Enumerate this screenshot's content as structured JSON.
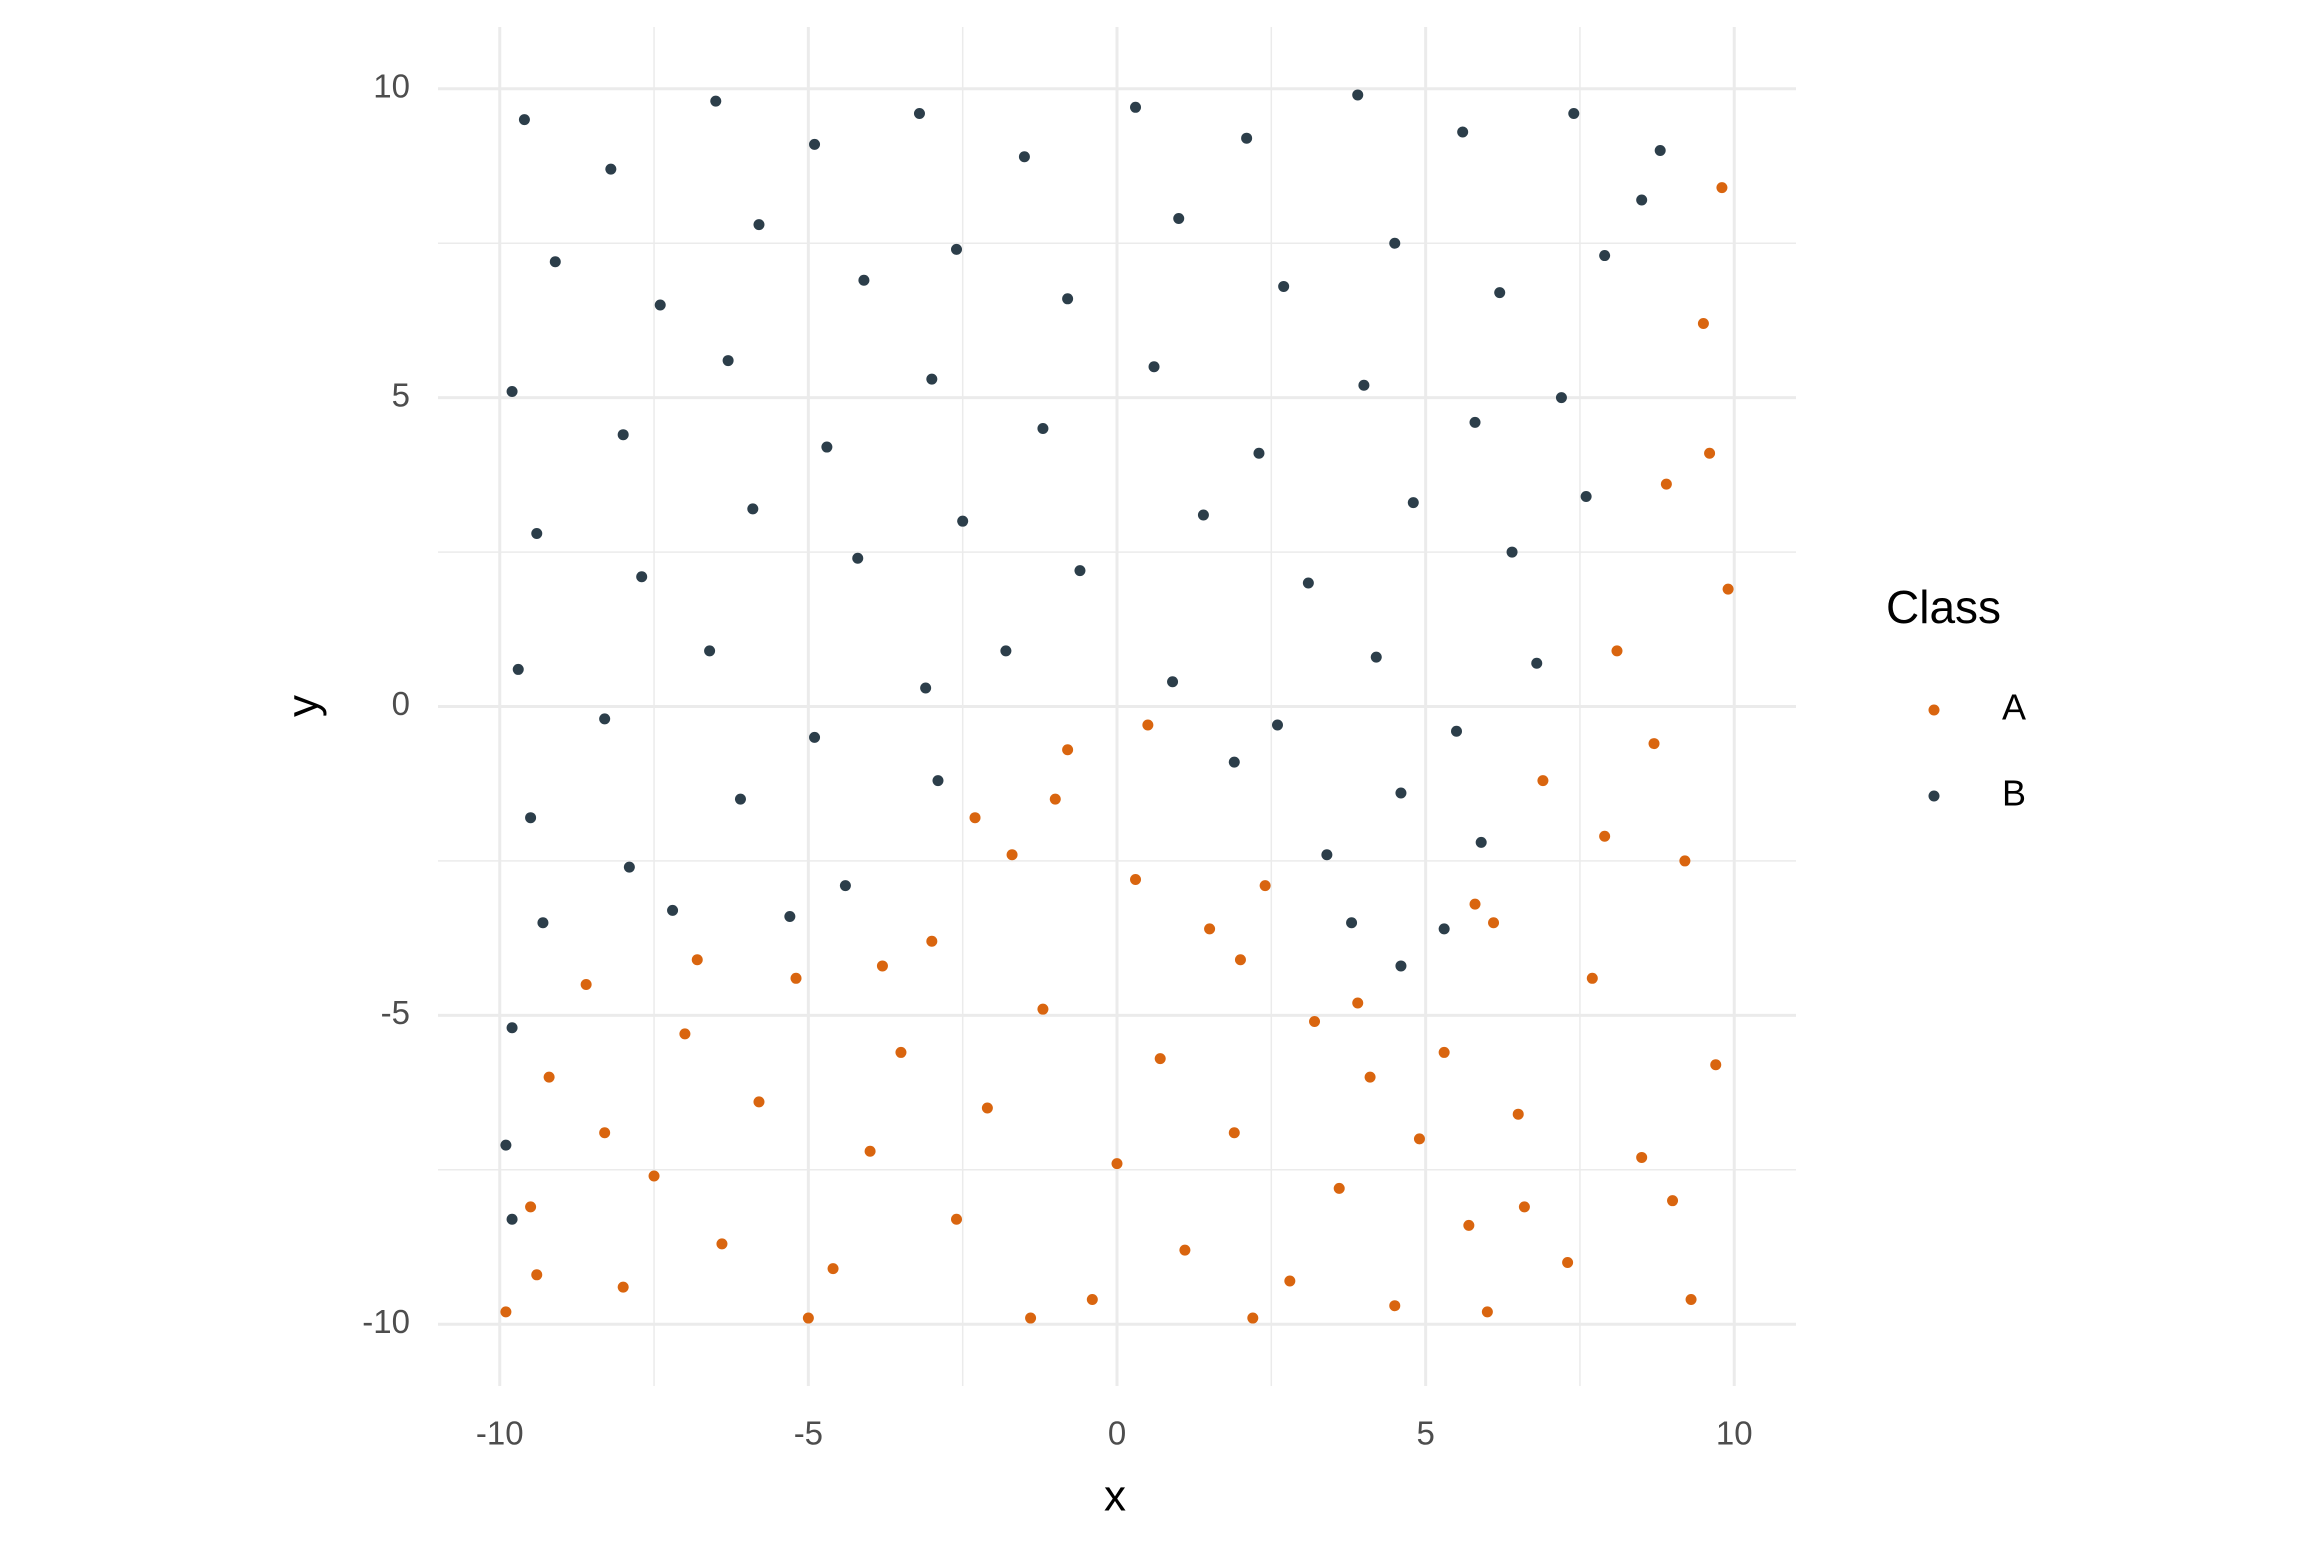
{
  "chart_data": {
    "type": "scatter",
    "x_label": "x",
    "y_label": "y",
    "legend_title": "Class",
    "legend_position": "right",
    "grid": true,
    "minor_grid": true,
    "xlim": [
      -11,
      11
    ],
    "ylim": [
      -11,
      11
    ],
    "xticks": [
      -10,
      -5,
      0,
      5,
      10
    ],
    "yticks": [
      -10,
      -5,
      0,
      5,
      10
    ],
    "series": [
      {
        "name": "A",
        "color": "#d9650f",
        "x": [
          -9.9,
          -9.5,
          -9.2,
          -8.6,
          -8.0,
          -7.5,
          -7.0,
          -6.4,
          -5.8,
          -5.2,
          -4.6,
          -4.0,
          -3.5,
          -3.0,
          -2.6,
          -2.1,
          -1.7,
          -1.2,
          -0.8,
          -0.4,
          0.0,
          0.3,
          0.7,
          1.1,
          1.5,
          1.9,
          2.4,
          2.8,
          3.2,
          3.6,
          4.1,
          4.5,
          4.9,
          5.3,
          5.7,
          6.1,
          6.5,
          6.9,
          7.3,
          7.7,
          8.1,
          8.5,
          8.9,
          9.2,
          9.5,
          9.7,
          9.9,
          9.8,
          9.3,
          8.7,
          7.9,
          6.6,
          5.8,
          3.9,
          2.0,
          0.5,
          -1.0,
          -2.3,
          -3.8,
          -6.8,
          -8.3,
          -9.4,
          -5.0,
          -1.4,
          2.2,
          6.0,
          9.0,
          9.6
        ],
        "y": [
          -9.8,
          -8.1,
          -6.0,
          -4.5,
          -9.4,
          -7.6,
          -5.3,
          -8.7,
          -6.4,
          -4.4,
          -9.1,
          -7.2,
          -5.6,
          -3.8,
          -8.3,
          -6.5,
          -2.4,
          -4.9,
          -0.7,
          -9.6,
          -7.4,
          -2.8,
          -5.7,
          -8.8,
          -3.6,
          -6.9,
          -2.9,
          -9.3,
          -5.1,
          -7.8,
          -6.0,
          -9.7,
          -7.0,
          -5.6,
          -8.4,
          -3.5,
          -6.6,
          -1.2,
          -9.0,
          -4.4,
          0.9,
          -7.3,
          3.6,
          -2.5,
          6.2,
          -5.8,
          1.9,
          8.4,
          -9.6,
          -0.6,
          -2.1,
          -8.1,
          -3.2,
          -4.8,
          -4.1,
          -0.3,
          -1.5,
          -1.8,
          -4.2,
          -4.1,
          -6.9,
          -9.2,
          -9.9,
          -9.9,
          -9.9,
          -9.8,
          -8.0,
          4.1
        ]
      },
      {
        "name": "B",
        "color": "#2c3e4a",
        "x": [
          -9.6,
          -8.2,
          -6.5,
          -4.9,
          -3.2,
          -1.5,
          0.3,
          2.1,
          3.9,
          5.6,
          7.4,
          8.8,
          -9.1,
          -7.4,
          -5.8,
          -4.1,
          -2.6,
          -0.8,
          1.0,
          2.7,
          4.5,
          6.2,
          7.9,
          8.5,
          -9.8,
          -8.0,
          -6.3,
          -4.7,
          -3.0,
          -1.2,
          0.6,
          2.3,
          4.0,
          5.8,
          7.2,
          -9.4,
          -7.7,
          -5.9,
          -4.2,
          -2.5,
          -0.6,
          1.4,
          3.1,
          4.8,
          6.4,
          7.6,
          -9.7,
          -8.3,
          -6.6,
          -4.9,
          -3.1,
          -1.8,
          0.9,
          2.6,
          4.2,
          5.5,
          6.8,
          -9.5,
          -7.9,
          -6.1,
          -4.4,
          -2.9,
          1.9,
          3.4,
          4.6,
          5.9,
          -9.3,
          -7.2,
          -5.3,
          3.8,
          4.6,
          5.3,
          -9.8,
          -9.9,
          -9.8
        ],
        "y": [
          9.5,
          8.7,
          9.8,
          9.1,
          9.6,
          8.9,
          9.7,
          9.2,
          9.9,
          9.3,
          9.6,
          9.0,
          7.2,
          6.5,
          7.8,
          6.9,
          7.4,
          6.6,
          7.9,
          6.8,
          7.5,
          6.7,
          7.3,
          8.2,
          5.1,
          4.4,
          5.6,
          4.2,
          5.3,
          4.5,
          5.5,
          4.1,
          5.2,
          4.6,
          5.0,
          2.8,
          2.1,
          3.2,
          2.4,
          3.0,
          2.2,
          3.1,
          2.0,
          3.3,
          2.5,
          3.4,
          0.6,
          -0.2,
          0.9,
          -0.5,
          0.3,
          0.9,
          0.4,
          -0.3,
          0.8,
          -0.4,
          0.7,
          -1.8,
          -2.6,
          -1.5,
          -2.9,
          -1.2,
          -0.9,
          -2.4,
          -1.4,
          -2.2,
          -3.5,
          -3.3,
          -3.4,
          -3.5,
          -4.2,
          -3.6,
          -5.2,
          -7.1,
          -8.3
        ]
      }
    ]
  }
}
